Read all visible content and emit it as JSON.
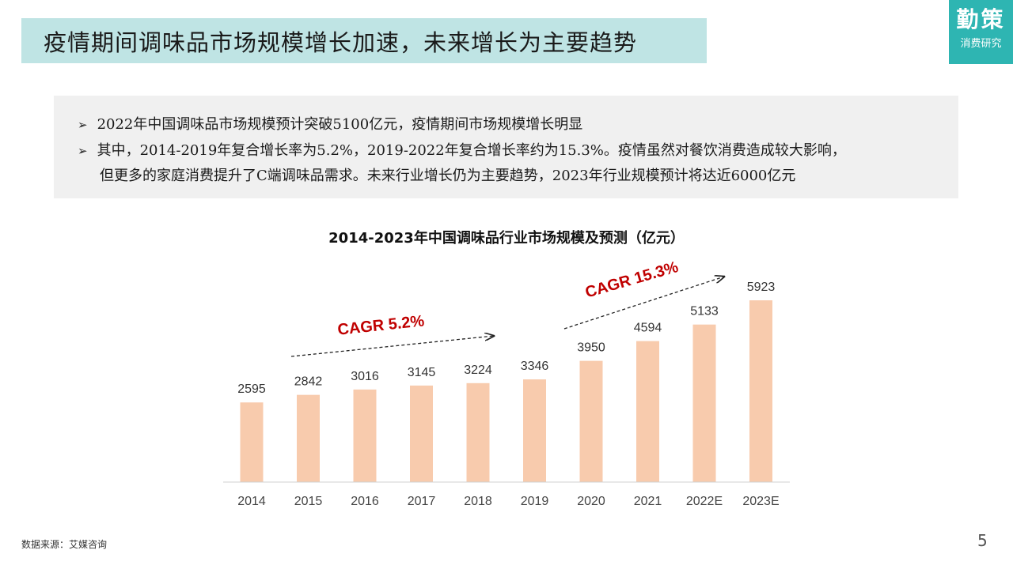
{
  "header": {
    "title": "疫情期间调味品市场规模增长加速，未来增长为主要趋势"
  },
  "logo": {
    "main": "勤策",
    "sub": "消费研究"
  },
  "summary": {
    "bullets": [
      "2022年中国调味品市场规模预计突破5100亿元，疫情期间市场规模增长明显",
      "其中，2014-2019年复合增长率为5.2%，2019-2022年复合增长率约为15.3%。疫情虽然对餐饮消费造成较大影响，"
    ],
    "continuation": "但更多的家庭消费提升了C端调味品需求。未来行业增长仍为主要趋势，2023年行业规模预计将达近6000亿元"
  },
  "chart_data": {
    "type": "bar",
    "title": "2014-2023年中国调味品行业市场规模及预测（亿元）",
    "categories": [
      "2014",
      "2015",
      "2016",
      "2017",
      "2018",
      "2019",
      "2020",
      "2021",
      "2022E",
      "2023E"
    ],
    "values": [
      2595,
      2842,
      3016,
      3145,
      3224,
      3346,
      3950,
      4594,
      5133,
      5923
    ],
    "xlabel": "",
    "ylabel": "",
    "ylim": [
      0,
      6000
    ],
    "grid": false,
    "legend": "none",
    "bar_color": "#f8cbad",
    "annotations": [
      {
        "text": "CAGR 5.2%",
        "from": "2015",
        "to": "2018",
        "color": "#c00000"
      },
      {
        "text": "CAGR 15.3%",
        "from": "2020",
        "to": "2022E",
        "color": "#c00000"
      }
    ]
  },
  "footer": {
    "source": "数据来源：艾媒咨询",
    "page": "5"
  }
}
